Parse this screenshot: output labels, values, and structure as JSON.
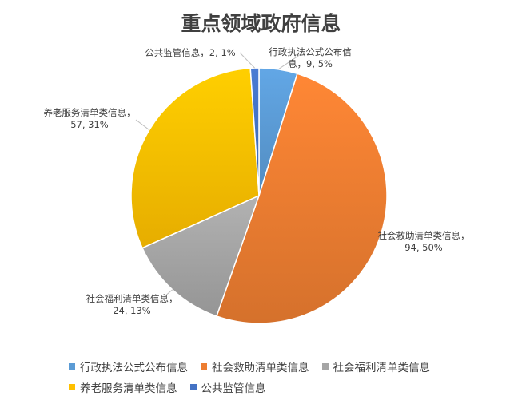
{
  "chart_data": {
    "type": "pie",
    "title": "重点领域政府信息",
    "legend_position": "bottom",
    "slices": [
      {
        "name": "行政执法公式公布信息",
        "value": 9,
        "percent": "5%",
        "label_line1": "行政执法公式公布信",
        "label_line2": "息，9, 5%",
        "color": "#5B9BD5"
      },
      {
        "name": "社会救助清单类信息",
        "value": 94,
        "percent": "50%",
        "label_line1": "社会救助清单类信息，",
        "label_line2": "94, 50%",
        "color": "#ED7D31"
      },
      {
        "name": "社会福利清单类信息",
        "value": 24,
        "percent": "13%",
        "label_line1": "社会福利清单类信息，",
        "label_line2": "24, 13%",
        "color": "#A5A5A5"
      },
      {
        "name": "养老服务清单类信息",
        "value": 57,
        "percent": "31%",
        "label_line1": "养老服务清单类信息，",
        "label_line2": "57, 31%",
        "color": "#FFC000"
      },
      {
        "name": "公共监管信息",
        "value": 2,
        "percent": "1%",
        "label_line1": "公共监管信息，2, 1%",
        "label_line2": "",
        "color": "#4472C4"
      }
    ]
  }
}
